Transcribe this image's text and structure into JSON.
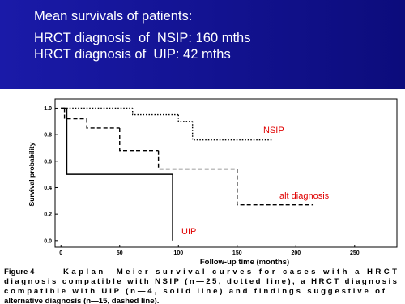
{
  "slide": {
    "lines": [
      "Mean survivals of patients:",
      "HRCT diagnosis  of  NSIP: 160 mths",
      "HRCT diagnosis of  UIP: 42 mths"
    ]
  },
  "chart_data": {
    "type": "line",
    "step": true,
    "xlabel": "Follow-up time (months)",
    "ylabel": "Survival probability",
    "xlim": [
      -5,
      286
    ],
    "ylim": [
      -0.05,
      1.07
    ],
    "xticks": [
      0,
      50,
      100,
      150,
      200,
      250
    ],
    "yticks": [
      {
        "value": 0,
        "label": "0.0"
      },
      {
        "value": 0.2,
        "label": "0.2"
      },
      {
        "value": 0.4,
        "label": "0.4"
      },
      {
        "value": 0.6,
        "label": "0.6"
      },
      {
        "value": 0.8,
        "label": "0.8"
      },
      {
        "value": 1,
        "label": "1.0"
      }
    ],
    "label_color": "#e00000",
    "series": [
      {
        "name": "NSIP",
        "color": "#000000",
        "dash": "1.5,2",
        "x": [
          0,
          61,
          100,
          112,
          180
        ],
        "values": [
          1.0,
          0.95,
          0.9,
          0.76,
          0.76
        ]
      },
      {
        "name": "alt diagnosis",
        "color": "#000000",
        "dash": "5,3",
        "x": [
          0,
          3,
          22,
          50,
          83,
          150,
          215
        ],
        "values": [
          1.0,
          0.92,
          0.85,
          0.68,
          0.54,
          0.27,
          0.27
        ]
      },
      {
        "name": "UIP",
        "color": "#000000",
        "dash": "none",
        "x": [
          0,
          5,
          95
        ],
        "values": [
          1.0,
          0.5,
          0.0
        ]
      }
    ]
  },
  "caption": {
    "figure": "Figure 4",
    "lines": [
      "Kaplan—Meier survival curves for cases with a HRCT",
      "diagnosis compatible with NSIP (n—25, dotted line), a HRCT diagnosis",
      "compatible with UIP (n—4, solid line) and findings suggestive of",
      "alternative diagnosis (n—15, dashed line)."
    ]
  }
}
